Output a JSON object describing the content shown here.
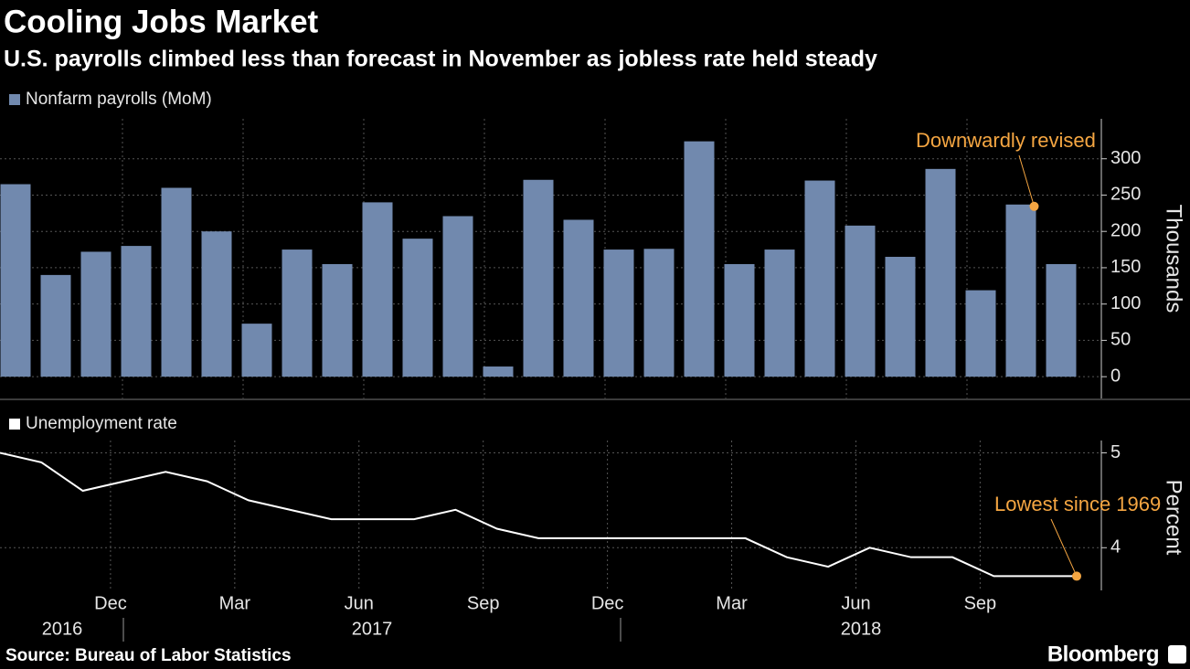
{
  "header": {
    "title": "Cooling Jobs Market",
    "subtitle": "U.S. payrolls climbed less than forecast in November as jobless rate held steady"
  },
  "chart_data": [
    {
      "type": "bar",
      "categories": [
        null,
        null,
        null,
        "Dec",
        null,
        null,
        "Mar",
        null,
        null,
        "Jun",
        null,
        null,
        "Sep",
        null,
        null,
        "Dec",
        null,
        null,
        "Mar",
        null,
        null,
        "Jun",
        null,
        null,
        "Sep",
        null,
        null
      ],
      "series": [
        {
          "name": "Nonfarm payrolls (MoM)",
          "color": "#7189ae",
          "values": [
            265,
            140,
            172,
            180,
            260,
            200,
            73,
            175,
            155,
            240,
            190,
            221,
            14,
            271,
            216,
            175,
            176,
            324,
            155,
            175,
            270,
            208,
            165,
            286,
            119,
            237,
            155
          ]
        }
      ],
      "ylim": [
        -30,
        355
      ],
      "yticks": [
        0,
        50,
        100,
        150,
        200,
        250,
        300
      ],
      "y_label": "Thousands",
      "grid": true,
      "annotation": {
        "text": "Downwardly revised",
        "point": 25,
        "color": "#f5a642"
      }
    },
    {
      "type": "line",
      "categories": [
        null,
        null,
        null,
        "Dec",
        null,
        null,
        "Mar",
        null,
        null,
        "Jun",
        null,
        null,
        "Sep",
        null,
        null,
        "Dec",
        null,
        null,
        "Mar",
        null,
        null,
        "Jun",
        null,
        null,
        "Sep",
        null,
        null
      ],
      "years": [
        "2016",
        "2017",
        "2018"
      ],
      "series": [
        {
          "name": "Unemployment rate",
          "color": "#ffffff",
          "values": [
            5.0,
            4.9,
            4.6,
            4.7,
            4.8,
            4.7,
            4.5,
            4.4,
            4.3,
            4.3,
            4.3,
            4.4,
            4.2,
            4.1,
            4.1,
            4.1,
            4.1,
            4.1,
            4.1,
            3.9,
            3.8,
            4.0,
            3.9,
            3.9,
            3.7,
            3.7,
            3.7
          ]
        }
      ],
      "ylim": [
        3.55,
        5.13
      ],
      "yticks": [
        4,
        5
      ],
      "y_label": "Percent",
      "grid": true,
      "annotation": {
        "text": "Lowest since 1969",
        "point": 26,
        "color": "#f5a642"
      }
    }
  ],
  "footer": {
    "source": "Source: Bureau of Labor Statistics",
    "brand": "Bloomberg"
  }
}
